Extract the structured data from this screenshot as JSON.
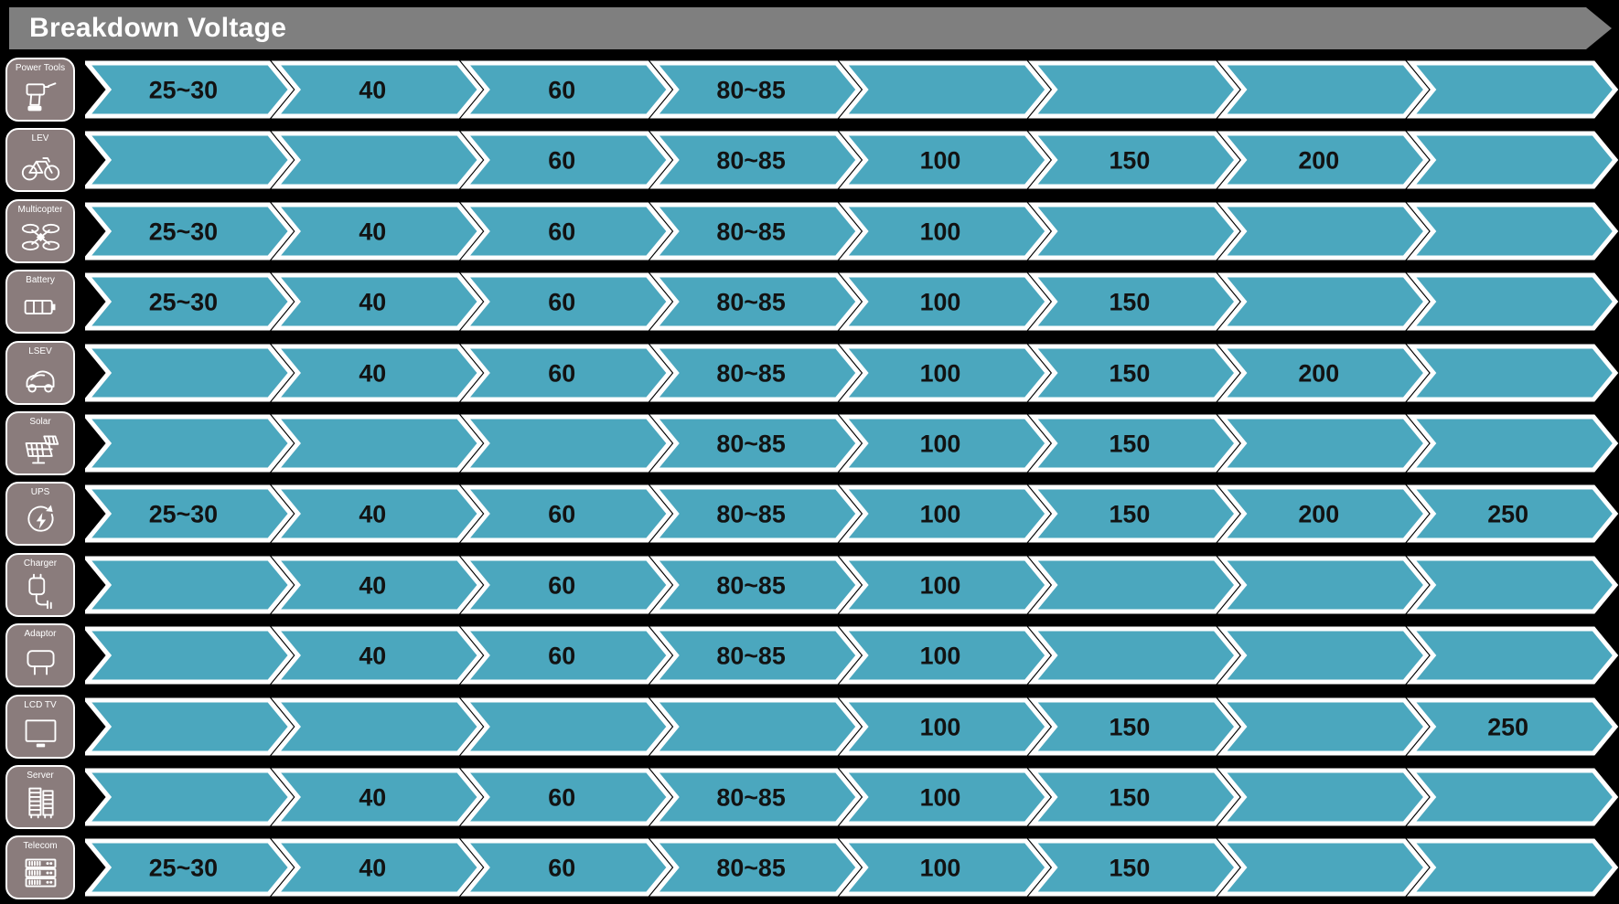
{
  "header": {
    "title": "Breakdown Voltage"
  },
  "colors": {
    "background": "#000000",
    "banner": "#7f7f7f",
    "title_text": "#ffffff",
    "chevron_fill": "#4ba7be",
    "chevron_outline": "#ffffff",
    "icon_box": "#8a7c7c",
    "cell_text": "#121212"
  },
  "chart_data": {
    "type": "table",
    "title": "Breakdown Voltage",
    "columns": [
      "25~30",
      "40",
      "60",
      "80~85",
      "100",
      "150",
      "200",
      "250"
    ],
    "legend_position": "none",
    "rows": [
      {
        "label": "Power Tools",
        "icon": "drill",
        "cells": [
          "25~30",
          "40",
          "60",
          "80~85",
          "",
          "",
          "",
          ""
        ]
      },
      {
        "label": "LEV",
        "icon": "bicycle",
        "cells": [
          "",
          "",
          "60",
          "80~85",
          "100",
          "150",
          "200",
          ""
        ]
      },
      {
        "label": "Multicopter",
        "icon": "drone",
        "cells": [
          "25~30",
          "40",
          "60",
          "80~85",
          "100",
          "",
          "",
          ""
        ]
      },
      {
        "label": "Battery",
        "icon": "battery",
        "cells": [
          "25~30",
          "40",
          "60",
          "80~85",
          "100",
          "150",
          "",
          ""
        ]
      },
      {
        "label": "LSEV",
        "icon": "car",
        "cells": [
          "",
          "40",
          "60",
          "80~85",
          "100",
          "150",
          "200",
          ""
        ]
      },
      {
        "label": "Solar",
        "icon": "solar-panel",
        "cells": [
          "",
          "",
          "",
          "80~85",
          "100",
          "150",
          "",
          ""
        ]
      },
      {
        "label": "UPS",
        "icon": "ups",
        "cells": [
          "25~30",
          "40",
          "60",
          "80~85",
          "100",
          "150",
          "200",
          "250"
        ]
      },
      {
        "label": "Charger",
        "icon": "charger",
        "cells": [
          "",
          "40",
          "60",
          "80~85",
          "100",
          "",
          "",
          ""
        ]
      },
      {
        "label": "Adaptor",
        "icon": "adaptor",
        "cells": [
          "",
          "40",
          "60",
          "80~85",
          "100",
          "",
          "",
          ""
        ]
      },
      {
        "label": "LCD TV",
        "icon": "tv",
        "cells": [
          "",
          "",
          "",
          "",
          "100",
          "150",
          "",
          "250"
        ]
      },
      {
        "label": "Server",
        "icon": "server",
        "cells": [
          "",
          "40",
          "60",
          "80~85",
          "100",
          "150",
          "",
          ""
        ]
      },
      {
        "label": "Telecom",
        "icon": "telecom",
        "cells": [
          "25~30",
          "40",
          "60",
          "80~85",
          "100",
          "150",
          "",
          ""
        ]
      }
    ]
  }
}
